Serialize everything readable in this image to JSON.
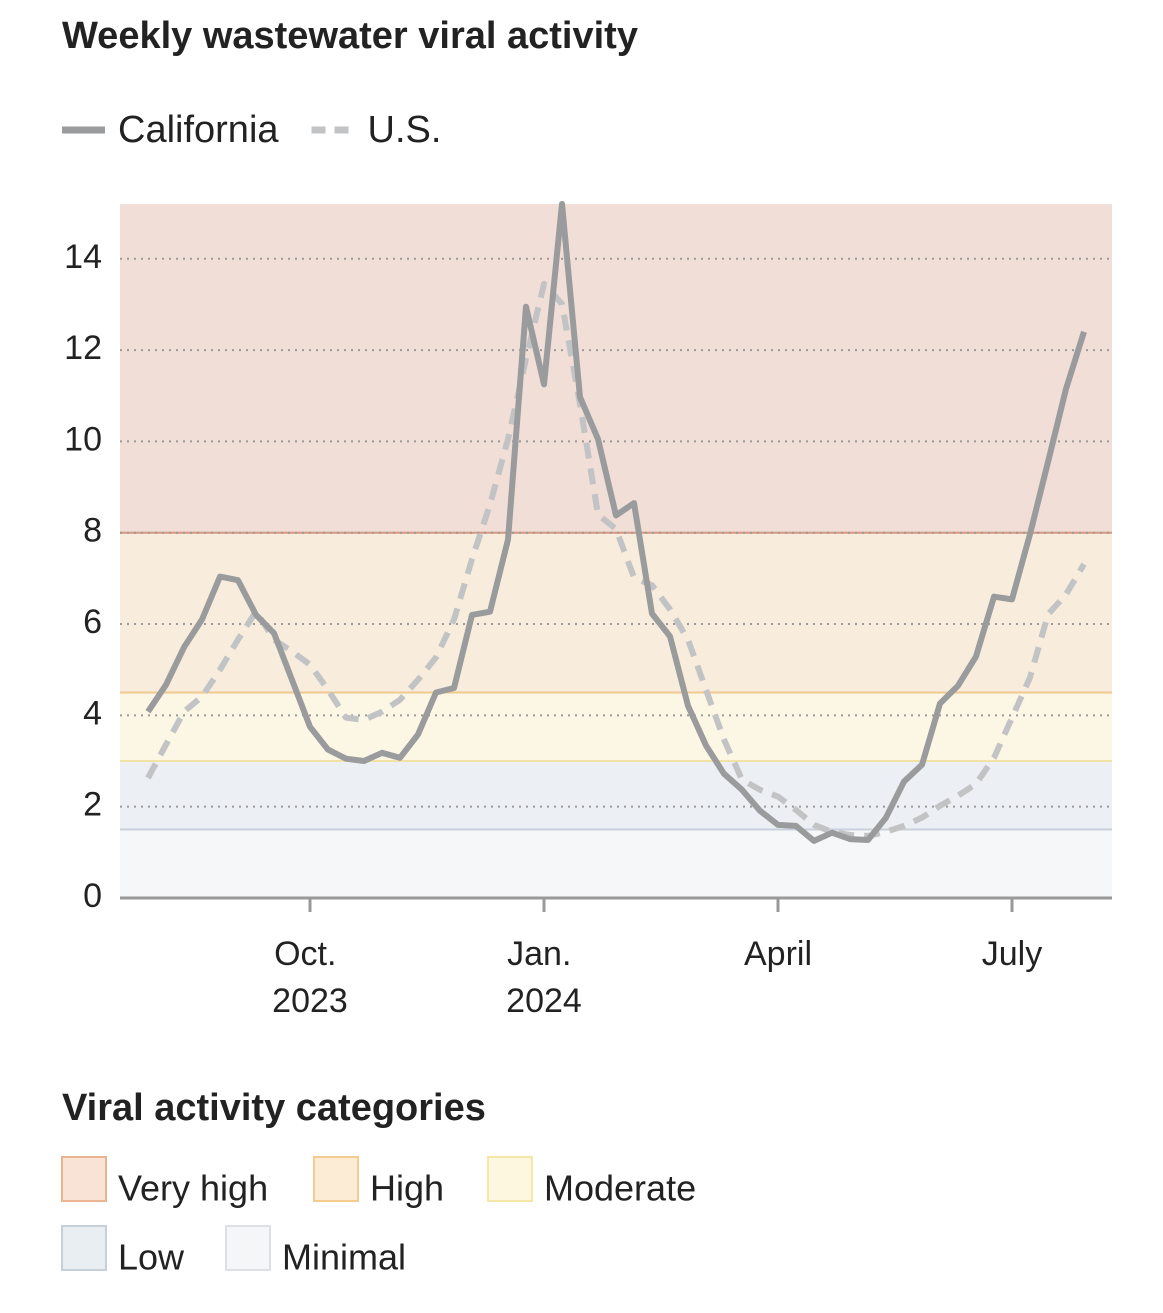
{
  "chart_data": {
    "type": "line",
    "title": "Weekly wastewater viral activity",
    "categories": [
      null,
      null,
      null,
      null,
      null,
      null,
      null,
      null,
      null,
      "Oct. 2023",
      null,
      null,
      null,
      null,
      null,
      null,
      null,
      null,
      null,
      null,
      null,
      null,
      "Jan. 2024",
      null,
      null,
      null,
      null,
      null,
      null,
      null,
      null,
      null,
      null,
      null,
      null,
      "April",
      null,
      null,
      null,
      null,
      null,
      null,
      null,
      null,
      null,
      null,
      null,
      null,
      "July",
      null,
      null,
      null,
      null
    ],
    "series": [
      {
        "name": "California",
        "color": "#9a9b9d",
        "dashed": false,
        "values": [
          4.08,
          4.67,
          5.49,
          6.1,
          7.04,
          6.96,
          6.2,
          5.8,
          4.78,
          3.75,
          3.25,
          3.05,
          3.0,
          3.18,
          3.07,
          3.58,
          4.5,
          4.6,
          6.2,
          6.27,
          7.85,
          12.95,
          11.25,
          15.2,
          10.97,
          10.05,
          8.38,
          8.65,
          6.23,
          5.73,
          4.21,
          3.34,
          2.72,
          2.37,
          1.91,
          1.6,
          1.58,
          1.25,
          1.43,
          1.29,
          1.27,
          1.76,
          2.55,
          2.92,
          4.26,
          4.65,
          5.29,
          6.6,
          6.54,
          7.97,
          9.55,
          11.15,
          12.4
        ]
      },
      {
        "name": "U.S.",
        "color": "#c2c3c5",
        "dashed": true,
        "values": [
          2.63,
          3.36,
          4.08,
          4.41,
          5.0,
          5.66,
          6.28,
          5.66,
          5.4,
          5.11,
          4.56,
          3.95,
          3.9,
          4.08,
          4.34,
          4.78,
          5.27,
          6.1,
          7.42,
          8.62,
          10.05,
          11.81,
          13.45,
          13.01,
          10.82,
          8.4,
          8.08,
          7.02,
          6.85,
          6.32,
          5.66,
          4.56,
          3.47,
          2.59,
          2.37,
          2.22,
          1.93,
          1.6,
          1.45,
          1.38,
          1.36,
          1.45,
          1.58,
          1.76,
          2.02,
          2.24,
          2.5,
          3.07,
          3.95,
          4.83,
          6.21,
          6.65,
          7.31
        ]
      }
    ],
    "ylim": [
      0,
      15.2
    ],
    "yticks": [
      0,
      2,
      4,
      6,
      8,
      10,
      12,
      14
    ],
    "grid": true,
    "bands_title": "Viral activity categories",
    "bands": [
      {
        "name": "Very high",
        "min": 8,
        "color": "#f0ded7",
        "line_color": "#d8957f",
        "legend_fill": "#f9e3d6",
        "legend_stroke": "#eab48f"
      },
      {
        "name": "High",
        "min": 4.5,
        "color": "#f8eddd",
        "line_color": "#f0c891",
        "legend_fill": "#fcecd6",
        "legend_stroke": "#f3cc8f"
      },
      {
        "name": "Moderate",
        "min": 3,
        "color": "#fcf7e4",
        "line_color": "#f3e2a5",
        "legend_fill": "#fdf7df",
        "legend_stroke": "#f6e7a8"
      },
      {
        "name": "Low",
        "min": 1.5,
        "color": "#eceff3",
        "line_color": "#c9d2dc",
        "legend_fill": "#e9eef3",
        "legend_stroke": "#c6d0da"
      },
      {
        "name": "Minimal",
        "min": 0,
        "color": "#f6f7f8",
        "line_color": "#e2e5e8",
        "legend_fill": "#f5f6f7",
        "legend_stroke": "#dde1e5"
      }
    ]
  }
}
